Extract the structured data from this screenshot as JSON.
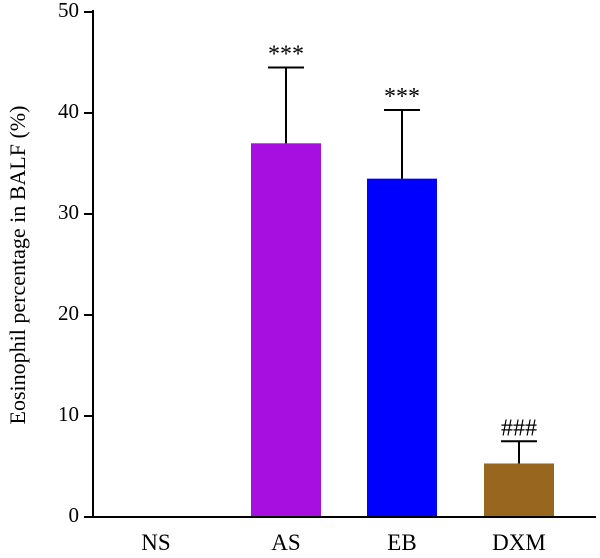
{
  "chart_data": {
    "type": "bar",
    "title": "",
    "xlabel": "",
    "ylabel": "Eosinophil percentage in BALF (%)",
    "ylim": [
      0,
      50
    ],
    "yticks": [
      0,
      10,
      20,
      30,
      40,
      50
    ],
    "grid": false,
    "categories": [
      "NS",
      "AS",
      "EB",
      "DXM"
    ],
    "values": [
      0,
      37,
      33.5,
      5.3
    ],
    "errors": [
      0,
      7.5,
      6.8,
      2.2
    ],
    "colors": [
      "#ffffff",
      "#a60fe0",
      "#0000ff",
      "#98661f"
    ],
    "annotations": [
      "",
      "***",
      "***",
      "###"
    ]
  }
}
